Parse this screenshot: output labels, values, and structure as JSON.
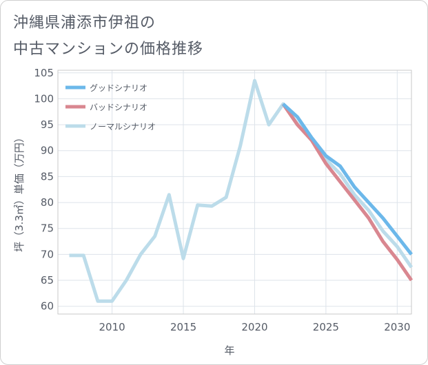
{
  "title_lines": [
    "沖縄県浦添市伊祖の",
    "中古マンションの価格推移"
  ],
  "chart_data": {
    "type": "line",
    "title": "沖縄県浦添市伊祖の中古マンションの価格推移",
    "xlabel": "年",
    "ylabel": "坪（3.3㎡）単価（万円）",
    "xlim": [
      2006.2,
      2031
    ],
    "ylim": [
      58.5,
      105.5
    ],
    "x_ticks": [
      2010,
      2015,
      2020,
      2025,
      2030
    ],
    "y_ticks": [
      60,
      65,
      70,
      75,
      80,
      85,
      90,
      95,
      100,
      105
    ],
    "grid": true,
    "legend_position": "top-left",
    "series": [
      {
        "name": "グッドシナリオ",
        "color": "#6cb8ea",
        "x": [
          2022,
          2023,
          2024,
          2025,
          2026,
          2027,
          2028,
          2029,
          2030,
          2031
        ],
        "y": [
          99,
          96.5,
          92.5,
          89,
          87,
          83,
          80,
          77,
          73.5,
          70
        ]
      },
      {
        "name": "バッドシナリオ",
        "color": "#d98790",
        "x": [
          2022,
          2023,
          2024,
          2025,
          2026,
          2027,
          2028,
          2029,
          2030,
          2031
        ],
        "y": [
          99,
          95,
          92,
          87.5,
          84,
          80.5,
          77,
          72.5,
          69,
          65
        ]
      },
      {
        "name": "ノーマルシナリオ",
        "color": "#bcdcea",
        "x": [
          2007,
          2008,
          2009,
          2010,
          2011,
          2012,
          2013,
          2014,
          2015,
          2016,
          2017,
          2018,
          2019,
          2020,
          2021,
          2022,
          2023,
          2024,
          2025,
          2026,
          2027,
          2028,
          2029,
          2030,
          2031
        ],
        "y": [
          69.8,
          69.8,
          61,
          61,
          65,
          70,
          73.5,
          81.5,
          69.2,
          79.5,
          79.3,
          81,
          91,
          103.5,
          95,
          99,
          95.2,
          92,
          88.3,
          85.5,
          81.5,
          78.5,
          74.5,
          71.5,
          67.5
        ]
      }
    ]
  }
}
